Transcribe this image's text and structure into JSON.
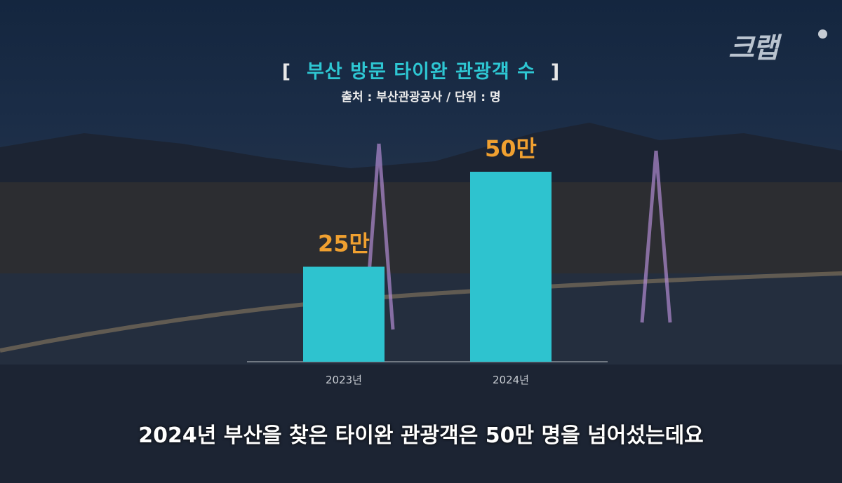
{
  "header": {
    "title": "부산 방문 타이완 관광객 수",
    "bracket_open": "[",
    "bracket_close": "]",
    "subtitle": "출처 : 부산관광공사 / 단위 : 명",
    "logo_text": "크랩"
  },
  "caption": "2024년 부산을 찾은 타이완 관광객은 50만 명을 넘어섰는데요",
  "colors": {
    "bar": "#2ec3cf",
    "data_label": "#f0a030",
    "title": "#2ec7d3"
  },
  "chart_data": {
    "type": "bar",
    "title": "부산 방문 타이완 관광객 수",
    "subtitle": "출처 : 부산관광공사 / 단위 : 명",
    "categories": [
      "2023년",
      "2024년"
    ],
    "values": [
      250000,
      500000
    ],
    "data_labels": [
      "25만",
      "50만"
    ],
    "ylim": [
      0,
      500000
    ],
    "grid": false
  }
}
